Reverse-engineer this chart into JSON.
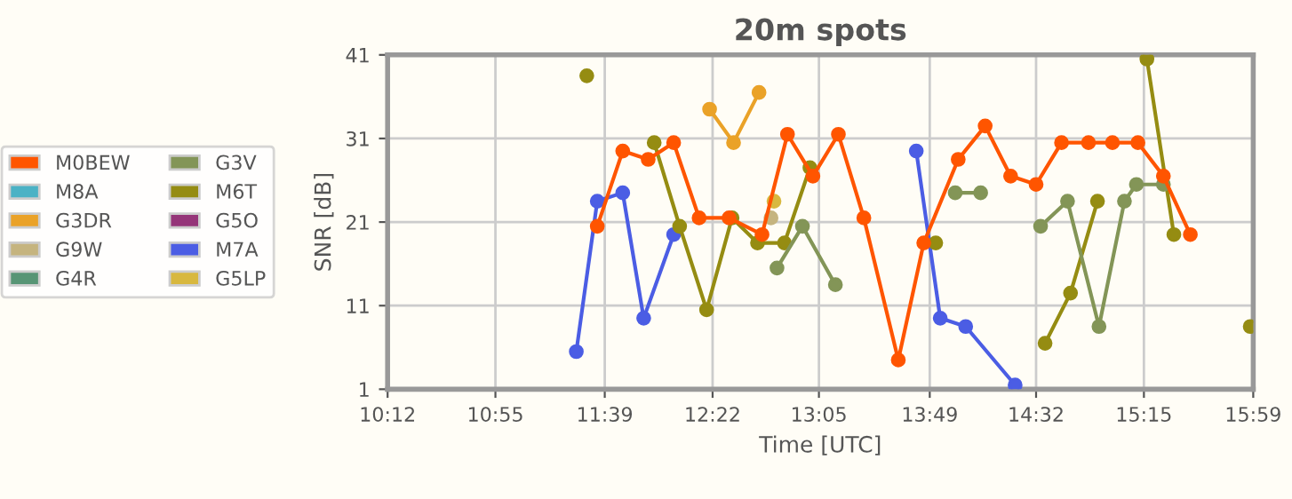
{
  "chart_data": {
    "type": "line",
    "title": "20m spots",
    "xlabel": "Time [UTC]",
    "ylabel": "SNR [dB]",
    "xlim": [
      10.2,
      15.98
    ],
    "ylim": [
      1,
      41
    ],
    "xticks": [
      {
        "value": 10.2,
        "label": "10:12"
      },
      {
        "value": 10.92,
        "label": "10:55"
      },
      {
        "value": 11.65,
        "label": "11:39"
      },
      {
        "value": 12.37,
        "label": "12:22"
      },
      {
        "value": 13.08,
        "label": "13:05"
      },
      {
        "value": 13.82,
        "label": "13:49"
      },
      {
        "value": 14.53,
        "label": "14:32"
      },
      {
        "value": 15.25,
        "label": "15:15"
      },
      {
        "value": 15.98,
        "label": "15:59"
      }
    ],
    "yticks": [
      1,
      11,
      21,
      31,
      41
    ],
    "grid": true,
    "legend": "left",
    "marker": "circle",
    "line_style": "solid",
    "series": [
      {
        "name": "M0BEW",
        "color": "#ff5500",
        "x": [
          11.6,
          11.77,
          11.94,
          12.11,
          12.28,
          12.48,
          12.7,
          12.87,
          13.04,
          13.21,
          13.38,
          13.61,
          13.78,
          14.01,
          14.19,
          14.36,
          14.53,
          14.7,
          14.88,
          15.04,
          15.21,
          15.38,
          15.56
        ],
        "values": [
          20.5,
          29.5,
          28.5,
          30.5,
          21.5,
          21.5,
          19.5,
          31.5,
          26.5,
          31.5,
          21.5,
          4.5,
          18.5,
          28.5,
          32.5,
          26.5,
          25.5,
          30.5,
          30.5,
          30.5,
          30.5,
          26.5,
          19.5
        ]
      },
      {
        "name": "M8A",
        "color": "#4bb2c5"
      },
      {
        "name": "G3DR",
        "color": "#eaa228",
        "x": [
          12.35,
          12.51,
          12.68
        ],
        "values": [
          34.5,
          30.5,
          36.5
        ]
      },
      {
        "name": "G9W",
        "color": "#c5b47f",
        "x": [
          12.76
        ],
        "values": [
          21.5
        ]
      },
      {
        "name": "G4R",
        "color": "#579575"
      },
      {
        "name": "G3V",
        "color": "#839557",
        "x": [
          12.8,
          12.97,
          13.19,
          13.5,
          13.99,
          14.16,
          14.3,
          14.56,
          14.74,
          14.95,
          15.12,
          15.2,
          15.38
        ],
        "values": [
          15.5,
          20.5,
          13.5,
          null,
          24.5,
          24.5,
          null,
          20.5,
          23.5,
          8.5,
          23.5,
          25.5,
          25.5
        ]
      },
      {
        "name": "M6T",
        "color": "#958c12",
        "x": [
          11.53,
          11.77,
          11.98,
          12.15,
          12.33,
          12.5,
          12.67,
          12.85,
          13.02,
          13.4,
          13.86,
          14.2,
          14.59,
          14.76,
          14.94,
          15.1,
          15.27,
          15.45,
          15.7,
          15.96
        ],
        "values": [
          38.5,
          null,
          30.5,
          20.5,
          10.5,
          21.5,
          18.5,
          18.5,
          27.5,
          null,
          18.5,
          null,
          6.5,
          12.5,
          23.5,
          null,
          40.5,
          19.5,
          null,
          8.5
        ]
      },
      {
        "name": "G5O",
        "color": "#953579"
      },
      {
        "name": "M7A",
        "color": "#4b5de4",
        "x": [
          11.46,
          11.6,
          11.77,
          11.91,
          12.11,
          12.9,
          13.73,
          13.89,
          14.06,
          14.39
        ],
        "values": [
          5.5,
          23.5,
          24.5,
          9.5,
          19.5,
          null,
          29.5,
          9.5,
          8.5,
          1.5
        ]
      },
      {
        "name": "G5LP",
        "color": "#d8b83f",
        "x": [
          12.78
        ],
        "values": [
          23.5
        ]
      }
    ]
  }
}
